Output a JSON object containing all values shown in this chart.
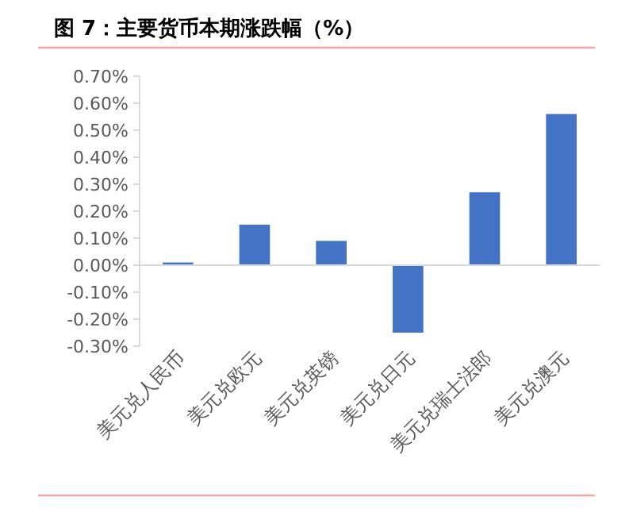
{
  "chart_data": {
    "type": "bar",
    "title": "图 7：主要货币本期涨跌幅（%）",
    "categories": [
      "美元兑人民币",
      "美元兑欧元",
      "美元兑英镑",
      "美元兑日元",
      "美元兑瑞士法郎",
      "美元兑澳元"
    ],
    "values": [
      0.01,
      0.15,
      0.09,
      -0.25,
      0.27,
      0.56
    ],
    "color": "#4472c4",
    "ylim": [
      -0.3,
      0.7
    ],
    "yticks": [
      {
        "value": -0.3,
        "label": "-0.30%"
      },
      {
        "value": -0.2,
        "label": "-0.20%"
      },
      {
        "value": -0.1,
        "label": "-0.10%"
      },
      {
        "value": 0,
        "label": "0.00%"
      },
      {
        "value": 0.1,
        "label": "0.10%"
      },
      {
        "value": 0.2,
        "label": "0.20%"
      },
      {
        "value": 0.3,
        "label": "0.30%"
      },
      {
        "value": 0.4,
        "label": "0.40%"
      },
      {
        "value": 0.5,
        "label": "0.50%"
      },
      {
        "value": 0.6,
        "label": "0.60%"
      },
      {
        "value": 0.7,
        "label": "0.70%"
      }
    ]
  }
}
